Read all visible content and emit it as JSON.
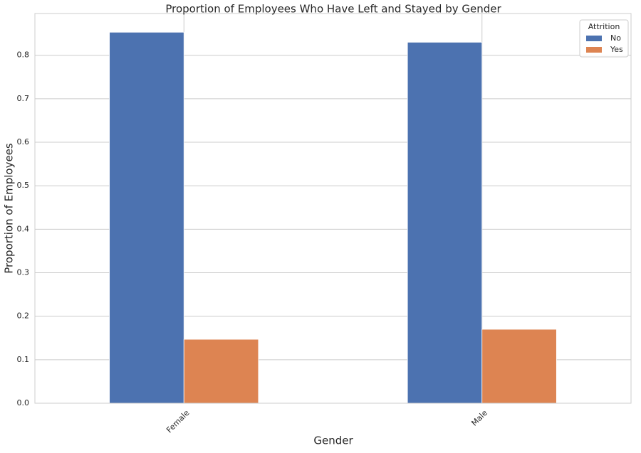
{
  "chart_data": {
    "type": "bar",
    "title": "Proportion of Employees Who Have Left and Stayed by Gender",
    "xlabel": "Gender",
    "ylabel": "Proportion of Employees",
    "categories": [
      "Female",
      "Male"
    ],
    "series": [
      {
        "name": "No",
        "color": "#4c72b0",
        "values": [
          0.853,
          0.83
        ]
      },
      {
        "name": "Yes",
        "color": "#dd8452",
        "values": [
          0.147,
          0.17
        ]
      }
    ],
    "ylim": [
      0,
      0.896
    ],
    "yticks": [
      "0.0",
      "0.1",
      "0.2",
      "0.3",
      "0.4",
      "0.5",
      "0.6",
      "0.7",
      "0.8"
    ],
    "grid": true,
    "legend": {
      "title": "Attrition",
      "placement": "top-right"
    }
  }
}
